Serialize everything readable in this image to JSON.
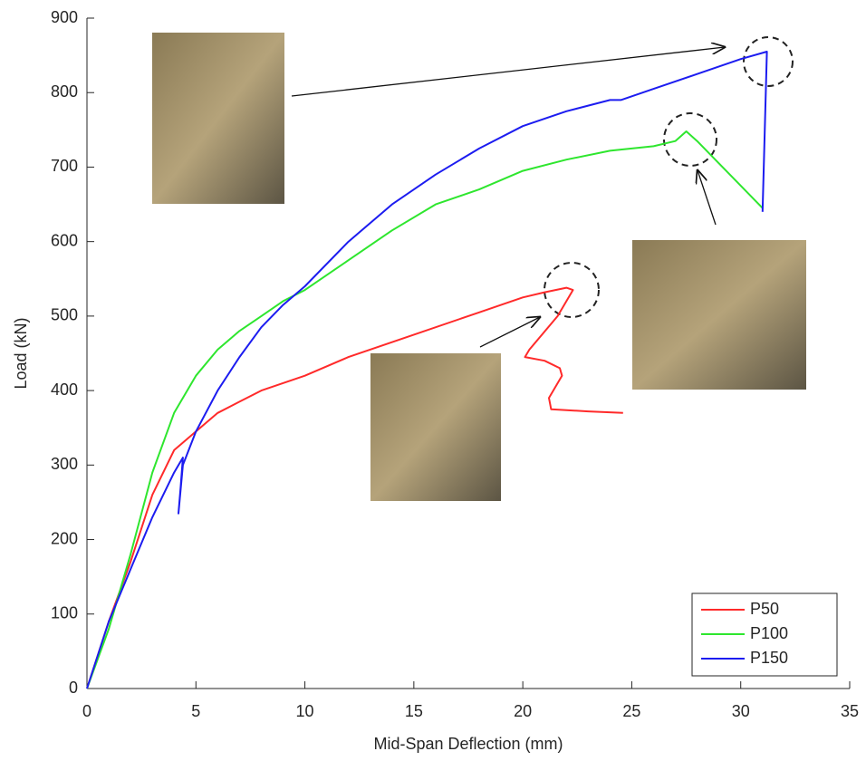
{
  "chart_data": {
    "type": "line",
    "xlabel": "Mid-Span Deflection (mm)",
    "ylabel": "Load (kN)",
    "xlim": [
      0,
      35
    ],
    "ylim": [
      0,
      900
    ],
    "xticks": [
      0,
      5,
      10,
      15,
      20,
      25,
      30,
      35
    ],
    "yticks": [
      0,
      100,
      200,
      300,
      400,
      500,
      600,
      700,
      800,
      900
    ],
    "grid": false,
    "legend": "lower right",
    "series": [
      {
        "name": "P50",
        "color": "#ff2a2a",
        "x": [
          0,
          1,
          2,
          3,
          4,
          5,
          6,
          7,
          8,
          10,
          12,
          15,
          18,
          20,
          21,
          22,
          22.3,
          21.6,
          20.3,
          20.1,
          21,
          21.7,
          21.8,
          21.2,
          21.3,
          23,
          24.6
        ],
        "values": [
          0,
          90,
          170,
          260,
          320,
          345,
          370,
          385,
          400,
          420,
          445,
          475,
          505,
          525,
          532,
          538,
          535,
          500,
          455,
          445,
          440,
          430,
          420,
          390,
          375,
          372,
          370
        ]
      },
      {
        "name": "P100",
        "color": "#2ee62e",
        "x": [
          0,
          1,
          2,
          3,
          4,
          5,
          6,
          7,
          8,
          9,
          10,
          12,
          14,
          16,
          18,
          20,
          22,
          24,
          26,
          27,
          27.5,
          28,
          29.5,
          31
        ],
        "values": [
          0,
          80,
          180,
          290,
          370,
          420,
          455,
          480,
          500,
          520,
          535,
          575,
          615,
          650,
          670,
          695,
          710,
          722,
          728,
          735,
          748,
          735,
          690,
          645
        ]
      },
      {
        "name": "P150",
        "color": "#1c1cf0",
        "x": [
          0,
          1,
          2,
          3,
          4,
          4.4,
          4.3,
          4.2,
          4.4,
          5,
          6,
          7,
          8,
          9,
          10,
          12,
          14,
          16,
          18,
          20,
          22,
          24,
          24.5,
          26,
          28,
          30,
          31.2,
          31
        ],
        "values": [
          0,
          90,
          160,
          230,
          290,
          310,
          270,
          235,
          300,
          345,
          400,
          445,
          485,
          515,
          540,
          600,
          650,
          690,
          725,
          755,
          775,
          790,
          790,
          805,
          825,
          845,
          855,
          640
        ]
      }
    ]
  }
}
